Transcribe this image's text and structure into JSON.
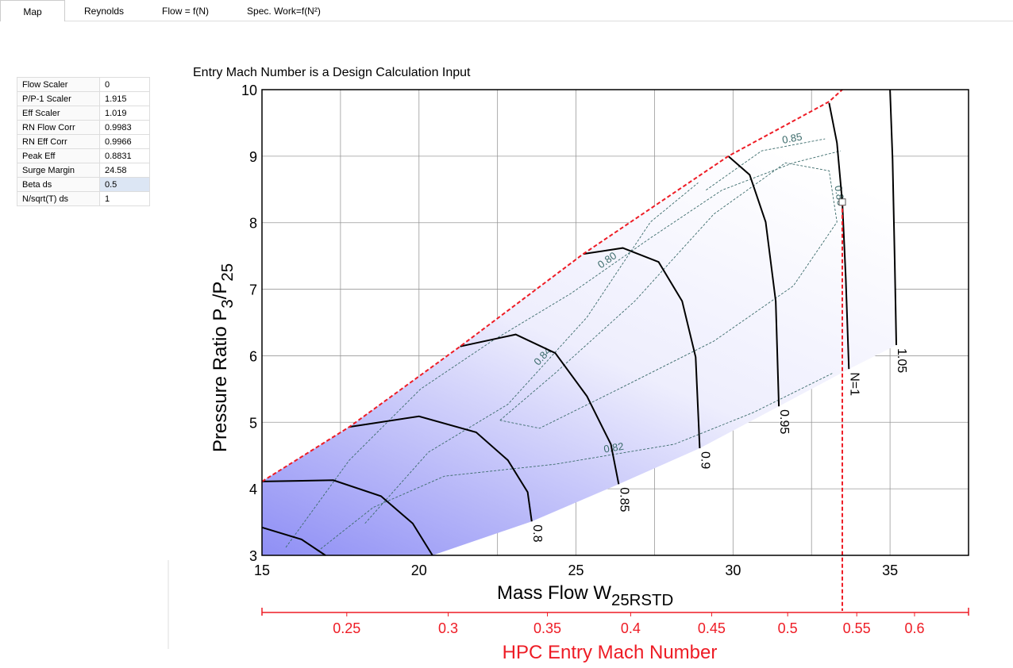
{
  "tabs": [
    "Map",
    "Reynolds",
    "Flow = f(N)",
    "Spec. Work=f(N²)"
  ],
  "parameters": [
    [
      "Flow Scaler",
      "0"
    ],
    [
      "P/P-1 Scaler",
      "1.915"
    ],
    [
      "Eff Scaler",
      "1.019"
    ],
    [
      "RN Flow Corr",
      "0.9983"
    ],
    [
      "RN Eff Corr",
      "0.9966"
    ],
    [
      "Peak Eff",
      "0.8831"
    ],
    [
      "Surge Margin",
      "24.58"
    ],
    [
      "Beta ds",
      "0.5"
    ],
    [
      "N/sqrt(T) ds",
      "1"
    ]
  ],
  "chart_data": {
    "type": "line",
    "title": "Entry Mach Number is a Design Calculation Input",
    "xlabel": [
      {
        "text": "Mass Flow W"
      },
      {
        "sub": "25RSTD"
      }
    ],
    "ylabel": [
      {
        "text": "Pressure  Ratio  P"
      },
      {
        "sub": "3"
      },
      {
        "text": "/P"
      },
      {
        "sub": "25"
      }
    ],
    "xlim": [
      15,
      37.5
    ],
    "ylim": [
      3,
      10
    ],
    "xticks": [
      15,
      20,
      25,
      30,
      35
    ],
    "yticks": [
      3,
      4,
      5,
      6,
      7,
      8,
      9,
      10
    ],
    "xminor": [
      17.5,
      22.5,
      27.5,
      32.5,
      37.5
    ],
    "grid": true,
    "speed_lines": [
      {
        "color": "#000000",
        "x": [
          15,
          16.26,
          17.02
        ],
        "y": [
          3.42,
          3.24,
          3.0
        ]
      },
      {
        "color": "#000000",
        "x": [
          15,
          17.27,
          18.79,
          19.8,
          20.43
        ],
        "y": [
          4.11,
          4.13,
          3.89,
          3.48,
          3.0
        ]
      },
      {
        "name": "0.8",
        "color": "#000000",
        "x": [
          17.78,
          20,
          21.82,
          22.83,
          23.46,
          23.59
        ],
        "y": [
          4.93,
          5.09,
          4.85,
          4.43,
          3.95,
          3.51
        ]
      },
      {
        "name": "0.85",
        "color": "#000000",
        "x": [
          21.31,
          23.08,
          24.34,
          25.35,
          26.11,
          26.36
        ],
        "y": [
          6.14,
          6.32,
          6.04,
          5.39,
          4.67,
          4.07
        ]
      },
      {
        "name": "0.9",
        "color": "#000000",
        "x": [
          25.23,
          26.49,
          27.63,
          28.38,
          28.81,
          28.94
        ],
        "y": [
          7.53,
          7.62,
          7.41,
          6.82,
          5.98,
          4.61
        ]
      },
      {
        "name": "0.95",
        "color": "#000000",
        "x": [
          29.85,
          30.53,
          31.04,
          31.36,
          31.46
        ],
        "y": [
          9.0,
          8.72,
          8.01,
          6.82,
          5.24
        ]
      },
      {
        "name": "N=1",
        "color": "#000000",
        "x": [
          33.06,
          33.31,
          33.48,
          33.59,
          33.69
        ],
        "y": [
          9.8,
          9.2,
          8.31,
          7.17,
          5.8
        ]
      },
      {
        "name": "1.05",
        "color": "#000000",
        "x": [
          35.0,
          35.08,
          35.15,
          35.2
        ],
        "y": [
          10,
          8.96,
          7.41,
          6.16
        ]
      }
    ],
    "efficiency_contours": [
      {
        "name": "0.80",
        "color": "#3b6b6b",
        "x": [
          15.76,
          17.78,
          20.05,
          22.32,
          24.85,
          27.37,
          29.65,
          31.92,
          33.43
        ],
        "y": [
          3.12,
          4.43,
          5.5,
          6.22,
          6.94,
          7.77,
          8.49,
          8.9,
          9.08
        ]
      },
      {
        "name": "0.82",
        "color": "#3b6b6b",
        "x": [
          16.77,
          18.54,
          20.81,
          24.34,
          28.13,
          30.66,
          33.18
        ],
        "y": [
          3.06,
          3.72,
          4.19,
          4.37,
          4.67,
          5.15,
          5.74
        ]
      },
      {
        "name": "0.84",
        "color": "#3b6b6b",
        "x": [
          18.28,
          20.3,
          22.83,
          25.35,
          27.37,
          28.89
        ],
        "y": [
          3.48,
          4.55,
          5.27,
          6.58,
          8.01,
          8.6
        ]
      },
      {
        "name": "0.85",
        "color": "#3b6b6b",
        "x": [
          29.14,
          30.91,
          32.93
        ],
        "y": [
          8.49,
          9.08,
          9.26
        ]
      },
      {
        "name": "0.86",
        "color": "#3b6b6b",
        "x": [
          22.58,
          24.34,
          26.87,
          29.39,
          31.67,
          33.06,
          33.31,
          31.92,
          29.39,
          26.36,
          23.84,
          22.58
        ],
        "y": [
          5.03,
          5.74,
          6.82,
          8.13,
          8.9,
          8.78,
          8.01,
          7.05,
          6.22,
          5.5,
          4.91,
          5.03
        ]
      }
    ],
    "surge_line": {
      "color": "#ee1c25",
      "x": [
        15,
        17.78,
        21.31,
        25.23,
        29.85,
        33.06,
        33.48
      ],
      "y": [
        4.11,
        4.93,
        6.14,
        7.53,
        9.0,
        9.82,
        10
      ]
    },
    "operating_point": {
      "x": 33.48,
      "y": 8.31,
      "color": "#ee1c25"
    },
    "mach_axis": {
      "label": "HPC Entry Mach Number",
      "color": "#ee1c25",
      "ticks": [
        {
          "value": 0.25,
          "flow": 17.7
        },
        {
          "value": 0.3,
          "flow": 20.93
        },
        {
          "value": 0.35,
          "flow": 24.09
        },
        {
          "value": 0.4,
          "flow": 26.74
        },
        {
          "value": 0.45,
          "flow": 29.32
        },
        {
          "value": 0.5,
          "flow": 31.74
        },
        {
          "value": 0.55,
          "flow": 33.94
        },
        {
          "value": 0.6,
          "flow": 35.78
        }
      ]
    }
  }
}
